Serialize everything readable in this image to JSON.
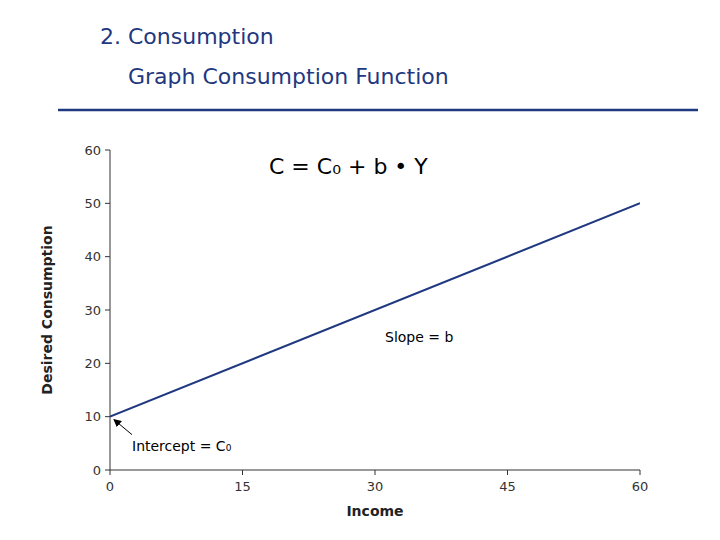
{
  "chart_data": {
    "type": "line",
    "title": "2. Consumption",
    "subtitle": "    Graph Consumption Function",
    "x_label": "Income",
    "y_label": "Desired Consumption",
    "x": [
      0,
      60
    ],
    "series": [
      {
        "color": "#1F3880",
        "values": [
          10,
          50.02
        ]
      }
    ],
    "color": "#1F3880",
    "xlim": [
      0,
      60
    ],
    "ylim": [
      0,
      60
    ],
    "xticks": [
      0,
      15,
      30,
      45,
      60
    ],
    "yticks": [
      0,
      10,
      20,
      30,
      40,
      50,
      60
    ],
    "grid": false,
    "annotations": [
      "C = C₀ + b • Y",
      "Slope = b",
      "Intercept = C₀"
    ]
  }
}
